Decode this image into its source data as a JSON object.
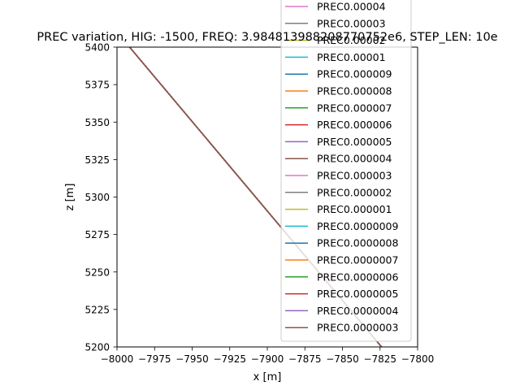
{
  "chart_data": {
    "type": "line",
    "title": "PREC variation, HIG: -1500, FREQ: 3.984813988208770752e6, STEP_LEN: 10e",
    "xlabel": "x [m]",
    "ylabel": "z [m]",
    "xlim": [
      -8000,
      -7800
    ],
    "ylim": [
      5200,
      5400
    ],
    "x_ticks": [
      -8000,
      -7975,
      -7950,
      -7925,
      -7900,
      -7875,
      -7850,
      -7825,
      -7800
    ],
    "x_tick_labels": [
      "−8000",
      "−7975",
      "−7950",
      "−7925",
      "−7900",
      "−7875",
      "−7850",
      "−7825",
      "−7800"
    ],
    "y_ticks": [
      5200,
      5225,
      5250,
      5275,
      5300,
      5325,
      5350,
      5375,
      5400
    ],
    "y_tick_labels": [
      "5200",
      "5225",
      "5250",
      "5275",
      "5300",
      "5325",
      "5350",
      "5375",
      "5400"
    ],
    "grid": false,
    "legend_placement": "right, overflowing above the axes",
    "series": [
      {
        "name": "PREC0.00004",
        "color": "#e377c2",
        "x": [
          -8000,
          -7824
        ],
        "y": [
          5410,
          5200
        ]
      },
      {
        "name": "PREC0.00003",
        "color": "#7f7f7f",
        "x": [
          -8000,
          -7824
        ],
        "y": [
          5410,
          5200
        ]
      },
      {
        "name": "PREC0.00002",
        "color": "#bcbd22",
        "x": [
          -8000,
          -7824
        ],
        "y": [
          5410,
          5200
        ]
      },
      {
        "name": "PREC0.00001",
        "color": "#17becf",
        "x": [
          -8000,
          -7824
        ],
        "y": [
          5410,
          5200
        ]
      },
      {
        "name": "PREC0.000009",
        "color": "#1f77b4",
        "x": [
          -8000,
          -7824
        ],
        "y": [
          5410,
          5200
        ]
      },
      {
        "name": "PREC0.000008",
        "color": "#ff7f0e",
        "x": [
          -8000,
          -7824
        ],
        "y": [
          5410,
          5200
        ]
      },
      {
        "name": "PREC0.000007",
        "color": "#2ca02c",
        "x": [
          -8000,
          -7824
        ],
        "y": [
          5410,
          5200
        ]
      },
      {
        "name": "PREC0.000006",
        "color": "#d62728",
        "x": [
          -8000,
          -7824
        ],
        "y": [
          5410,
          5200
        ]
      },
      {
        "name": "PREC0.000005",
        "color": "#9467bd",
        "x": [
          -8000,
          -7824
        ],
        "y": [
          5410,
          5200
        ]
      },
      {
        "name": "PREC0.000004",
        "color": "#8c564b",
        "x": [
          -8000,
          -7824
        ],
        "y": [
          5410,
          5200
        ]
      },
      {
        "name": "PREC0.000003",
        "color": "#e377c2",
        "x": [
          -8000,
          -7824
        ],
        "y": [
          5410,
          5200
        ]
      },
      {
        "name": "PREC0.000002",
        "color": "#7f7f7f",
        "x": [
          -8000,
          -7824
        ],
        "y": [
          5410,
          5200
        ]
      },
      {
        "name": "PREC0.000001",
        "color": "#bcbd22",
        "x": [
          -8000,
          -7824
        ],
        "y": [
          5410,
          5200
        ]
      },
      {
        "name": "PREC0.0000009",
        "color": "#17becf",
        "x": [
          -8000,
          -7824
        ],
        "y": [
          5410,
          5200
        ]
      },
      {
        "name": "PREC0.0000008",
        "color": "#1f77b4",
        "x": [
          -8000,
          -7824
        ],
        "y": [
          5410,
          5200
        ]
      },
      {
        "name": "PREC0.0000007",
        "color": "#ff7f0e",
        "x": [
          -8000,
          -7824
        ],
        "y": [
          5410,
          5200
        ]
      },
      {
        "name": "PREC0.0000006",
        "color": "#2ca02c",
        "x": [
          -8000,
          -7824
        ],
        "y": [
          5410,
          5200
        ]
      },
      {
        "name": "PREC0.0000005",
        "color": "#d62728",
        "x": [
          -8000,
          -7824
        ],
        "y": [
          5410,
          5200
        ]
      },
      {
        "name": "PREC0.0000004",
        "color": "#9467bd",
        "x": [
          -8000,
          -7824
        ],
        "y": [
          5410,
          5200
        ]
      },
      {
        "name": "PREC0.0000003",
        "color": "#8c564b",
        "x": [
          -8000,
          -7824
        ],
        "y": [
          5410,
          5200
        ]
      }
    ]
  }
}
